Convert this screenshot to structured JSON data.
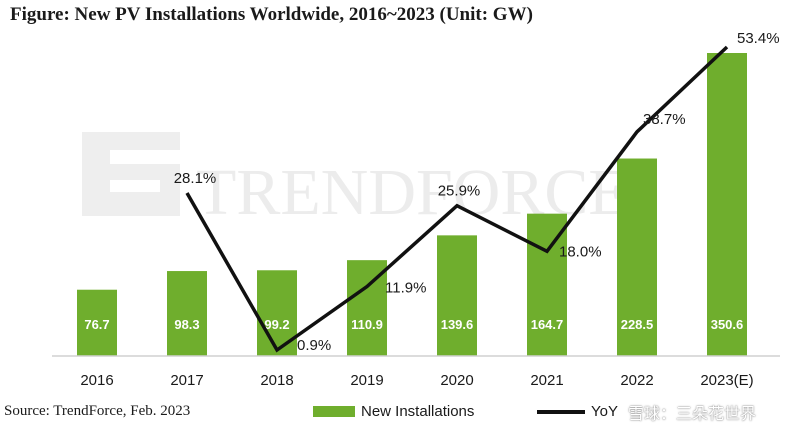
{
  "title": "Figure: New PV Installations Worldwide, 2016~2023 (Unit: GW)",
  "source": "Source: TrendForce, Feb. 2023",
  "watermark": "TRENDFORCE",
  "social_watermark": "雪球：三朵花世界",
  "colors": {
    "bar": "#6fae2d",
    "line": "#111111",
    "bar_label": "#ffffff"
  },
  "chart_data": {
    "type": "bar",
    "categories": [
      "2016",
      "2017",
      "2018",
      "2019",
      "2020",
      "2021",
      "2022",
      "2023(E)"
    ],
    "series": [
      {
        "name": "New Installations",
        "type": "bar",
        "values": [
          76.7,
          98.3,
          99.2,
          110.9,
          139.6,
          164.7,
          228.5,
          350.6
        ],
        "labels": [
          "76.7",
          "98.3",
          "99.2",
          "110.9",
          "139.6",
          "164.7",
          "228.5",
          "350.6"
        ]
      },
      {
        "name": "YoY",
        "type": "line",
        "x": [
          "2017",
          "2018",
          "2019",
          "2020",
          "2021",
          "2022",
          "2023(E)"
        ],
        "values": [
          28.1,
          0.9,
          11.9,
          25.9,
          18.0,
          38.7,
          53.4
        ],
        "labels": [
          "28.1%",
          "0.9%",
          "11.9%",
          "25.9%",
          "18.0%",
          "38.7%",
          "53.4%"
        ]
      }
    ],
    "ylim_bar": [
      0,
      360
    ],
    "ylim_line": [
      0,
      56
    ],
    "legend": "bottom",
    "grid": false
  }
}
